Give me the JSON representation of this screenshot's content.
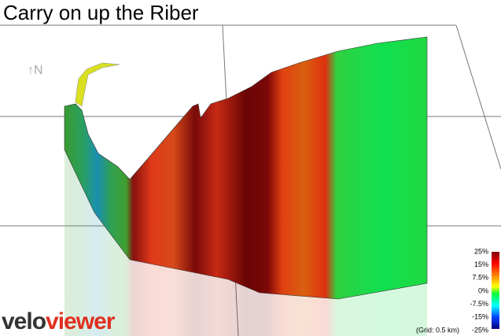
{
  "title": "Carry on up the Riber",
  "north": "↑N",
  "logo": {
    "part1": "velo",
    "part2": "viewer"
  },
  "legend": {
    "ticks": [
      "25%",
      "15%",
      "7.5%",
      "0%",
      "-7.5%",
      "-15%",
      "-25%"
    ]
  },
  "grid_note": "(Grid: 0.5 km)"
}
